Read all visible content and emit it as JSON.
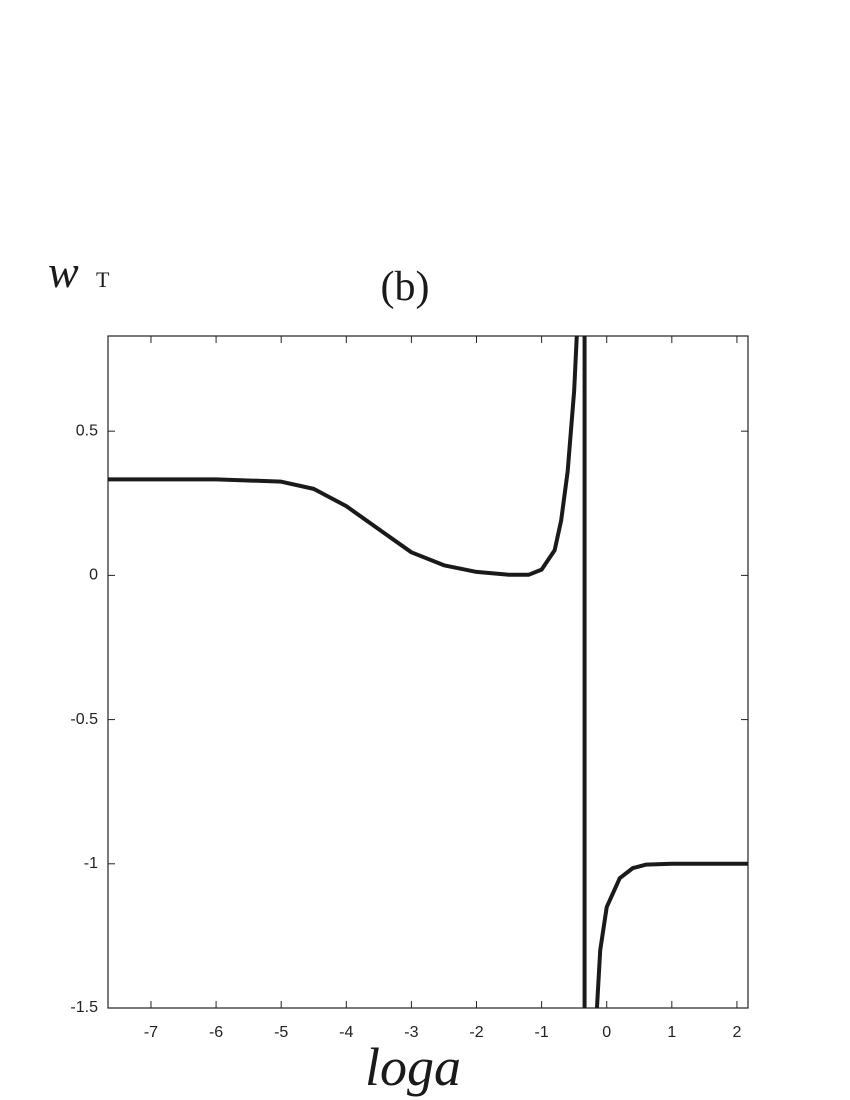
{
  "chart_data": {
    "type": "line",
    "title": "(b)",
    "xlabel": "loga",
    "ylabel": "w",
    "ylabel_subscript": "T",
    "xlim": [
      -7.66,
      2.17
    ],
    "ylim": [
      -1.5,
      0.83
    ],
    "xticks": [
      -7,
      -6,
      -5,
      -4,
      -3,
      -2,
      -1,
      0,
      1,
      2
    ],
    "yticks": [
      -1.5,
      -1,
      -0.5,
      0,
      0.5
    ],
    "grid": false,
    "series": [
      {
        "color": "#1a1a1a",
        "x": [
          -7.66,
          -6,
          -5,
          -4.5,
          -4,
          -3.5,
          -3,
          -2.5,
          -2,
          -1.5,
          -1.2,
          -1.0,
          -0.8,
          -0.7,
          -0.6,
          -0.5,
          -0.46,
          null,
          -0.34,
          -0.34,
          null,
          -0.15,
          -0.1,
          0,
          0.2,
          0.4,
          0.6,
          1,
          2.17
        ],
        "values": [
          0.333,
          0.333,
          0.325,
          0.3,
          0.24,
          0.16,
          0.08,
          0.035,
          0.012,
          0.002,
          0.002,
          0.02,
          0.087,
          0.19,
          0.36,
          0.64,
          0.83,
          null,
          0.83,
          -1.5,
          null,
          -1.5,
          -1.3,
          -1.15,
          -1.05,
          -1.015,
          -1.003,
          -1.0,
          -1.0
        ]
      }
    ]
  }
}
